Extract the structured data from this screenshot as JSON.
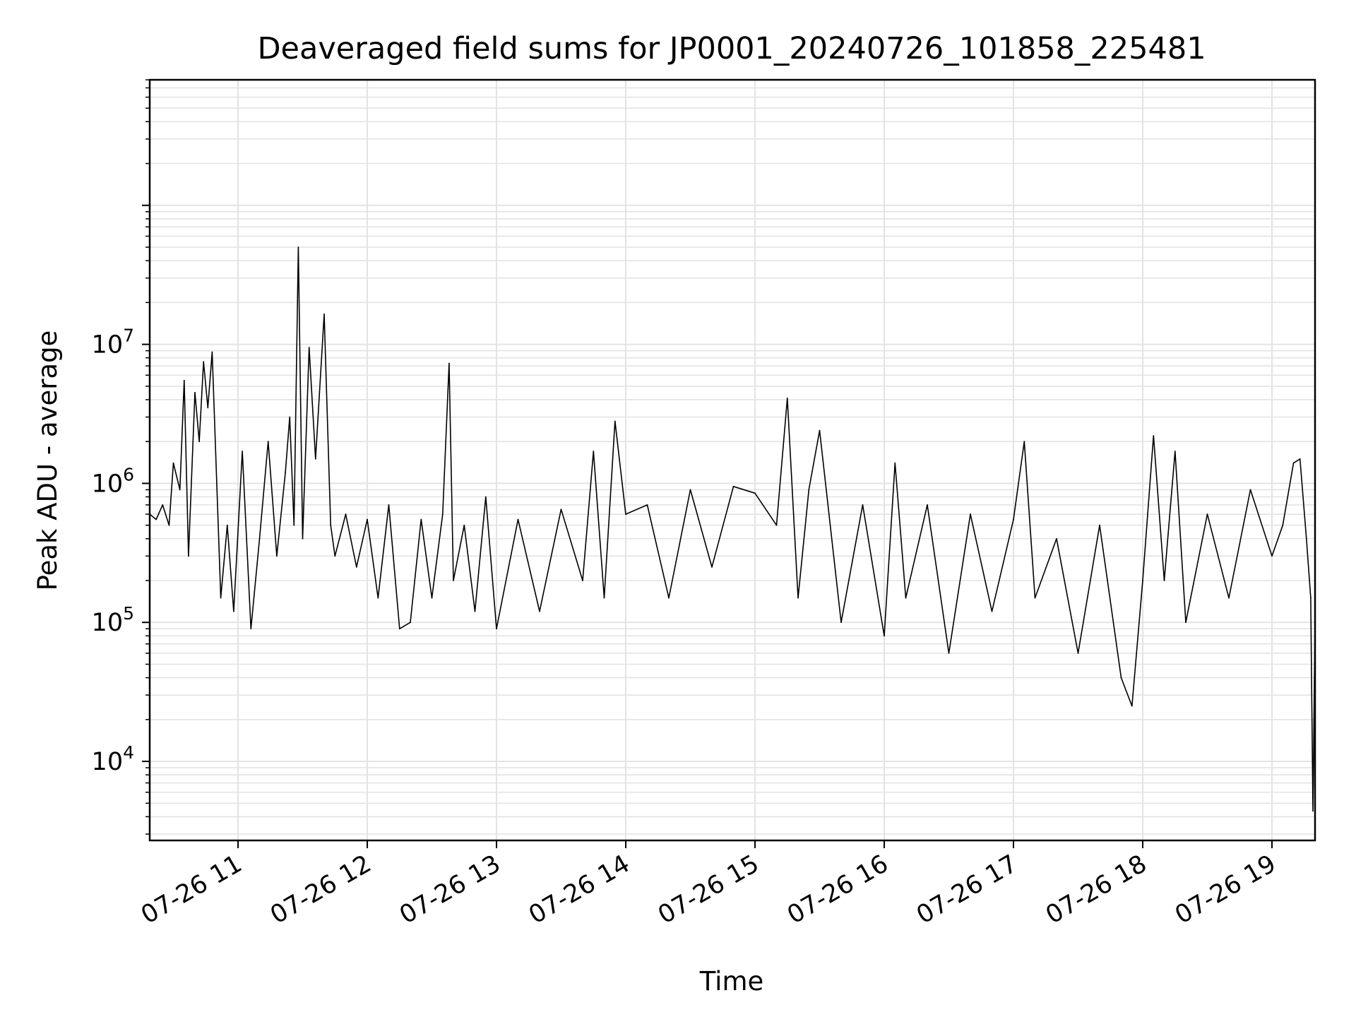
{
  "chart_data": {
    "type": "line",
    "title": "Deaveraged field sums for JP0001_20240726_101858_225481",
    "xlabel": "Time",
    "ylabel": "Peak ADU - average",
    "yscale": "log",
    "xlim": [
      "2024-07-26 10:19",
      "2024-07-26 19:20"
    ],
    "ylim": [
      2700,
      800000000
    ],
    "grid": true,
    "x_ticks": [
      "07-26 11",
      "07-26 12",
      "07-26 13",
      "07-26 14",
      "07-26 15",
      "07-26 16",
      "07-26 17",
      "07-26 18",
      "07-26 19"
    ],
    "y_ticks": [
      {
        "base": "10",
        "exp": "4",
        "value": 10000
      },
      {
        "base": "10",
        "exp": "5",
        "value": 100000
      },
      {
        "base": "10",
        "exp": "6",
        "value": 1000000
      },
      {
        "base": "10",
        "exp": "7",
        "value": 10000000
      }
    ],
    "line_color": "#000000",
    "series": [
      {
        "x": [
          "2024-07-26 10:19",
          "2024-07-26 10:22",
          "2024-07-26 10:25",
          "2024-07-26 10:28",
          "2024-07-26 10:30",
          "2024-07-26 10:33",
          "2024-07-26 10:35",
          "2024-07-26 10:37",
          "2024-07-26 10:40",
          "2024-07-26 10:42",
          "2024-07-26 10:44",
          "2024-07-26 10:46",
          "2024-07-26 10:48",
          "2024-07-26 10:52",
          "2024-07-26 10:55",
          "2024-07-26 10:58",
          "2024-07-26 11:02",
          "2024-07-26 11:06",
          "2024-07-26 11:10",
          "2024-07-26 11:14",
          "2024-07-26 11:18",
          "2024-07-26 11:22",
          "2024-07-26 11:24",
          "2024-07-26 11:26",
          "2024-07-26 11:28",
          "2024-07-26 11:30",
          "2024-07-26 11:33",
          "2024-07-26 11:36",
          "2024-07-26 11:40",
          "2024-07-26 11:43",
          "2024-07-26 11:45",
          "2024-07-26 11:50",
          "2024-07-26 11:55",
          "2024-07-26 12:00",
          "2024-07-26 12:05",
          "2024-07-26 12:10",
          "2024-07-26 12:15",
          "2024-07-26 12:20",
          "2024-07-26 12:25",
          "2024-07-26 12:30",
          "2024-07-26 12:35",
          "2024-07-26 12:38",
          "2024-07-26 12:40",
          "2024-07-26 12:45",
          "2024-07-26 12:50",
          "2024-07-26 12:55",
          "2024-07-26 13:00",
          "2024-07-26 13:10",
          "2024-07-26 13:20",
          "2024-07-26 13:30",
          "2024-07-26 13:40",
          "2024-07-26 13:45",
          "2024-07-26 13:50",
          "2024-07-26 13:55",
          "2024-07-26 14:00",
          "2024-07-26 14:10",
          "2024-07-26 14:20",
          "2024-07-26 14:30",
          "2024-07-26 14:40",
          "2024-07-26 14:50",
          "2024-07-26 15:00",
          "2024-07-26 15:10",
          "2024-07-26 15:15",
          "2024-07-26 15:20",
          "2024-07-26 15:25",
          "2024-07-26 15:30",
          "2024-07-26 15:40",
          "2024-07-26 15:50",
          "2024-07-26 16:00",
          "2024-07-26 16:05",
          "2024-07-26 16:10",
          "2024-07-26 16:20",
          "2024-07-26 16:30",
          "2024-07-26 16:40",
          "2024-07-26 16:50",
          "2024-07-26 17:00",
          "2024-07-26 17:05",
          "2024-07-26 17:10",
          "2024-07-26 17:20",
          "2024-07-26 17:30",
          "2024-07-26 17:40",
          "2024-07-26 17:50",
          "2024-07-26 17:55",
          "2024-07-26 18:00",
          "2024-07-26 18:05",
          "2024-07-26 18:10",
          "2024-07-26 18:15",
          "2024-07-26 18:20",
          "2024-07-26 18:30",
          "2024-07-26 18:40",
          "2024-07-26 18:50",
          "2024-07-26 19:00",
          "2024-07-26 19:05",
          "2024-07-26 19:10",
          "2024-07-26 19:13",
          "2024-07-26 19:16",
          "2024-07-26 19:18",
          "2024-07-26 19:19",
          "2024-07-26 19:20"
        ],
        "values": [
          600000,
          550000,
          700000,
          500000,
          1400000,
          900000,
          5500000,
          300000,
          4500000,
          2000000,
          7500000,
          3500000,
          8800000,
          150000,
          500000,
          120000,
          1700000,
          90000,
          400000,
          2000000,
          300000,
          1200000,
          3000000,
          500000,
          50000000,
          400000,
          9500000,
          1500000,
          16500000,
          500000,
          300000,
          600000,
          250000,
          550000,
          150000,
          700000,
          90000,
          100000,
          550000,
          150000,
          600000,
          7300000,
          200000,
          500000,
          120000,
          800000,
          90000,
          550000,
          120000,
          650000,
          200000,
          1700000,
          150000,
          2800000,
          600000,
          700000,
          150000,
          900000,
          250000,
          950000,
          850000,
          500000,
          4100000,
          150000,
          900000,
          2400000,
          100000,
          700000,
          80000,
          1400000,
          150000,
          700000,
          60000,
          600000,
          120000,
          550000,
          2000000,
          150000,
          400000,
          60000,
          500000,
          40000,
          25000,
          200000,
          2200000,
          200000,
          1700000,
          100000,
          600000,
          150000,
          900000,
          300000,
          500000,
          1400000,
          1500000,
          400000,
          150000,
          4400,
          100000
        ]
      }
    ]
  }
}
